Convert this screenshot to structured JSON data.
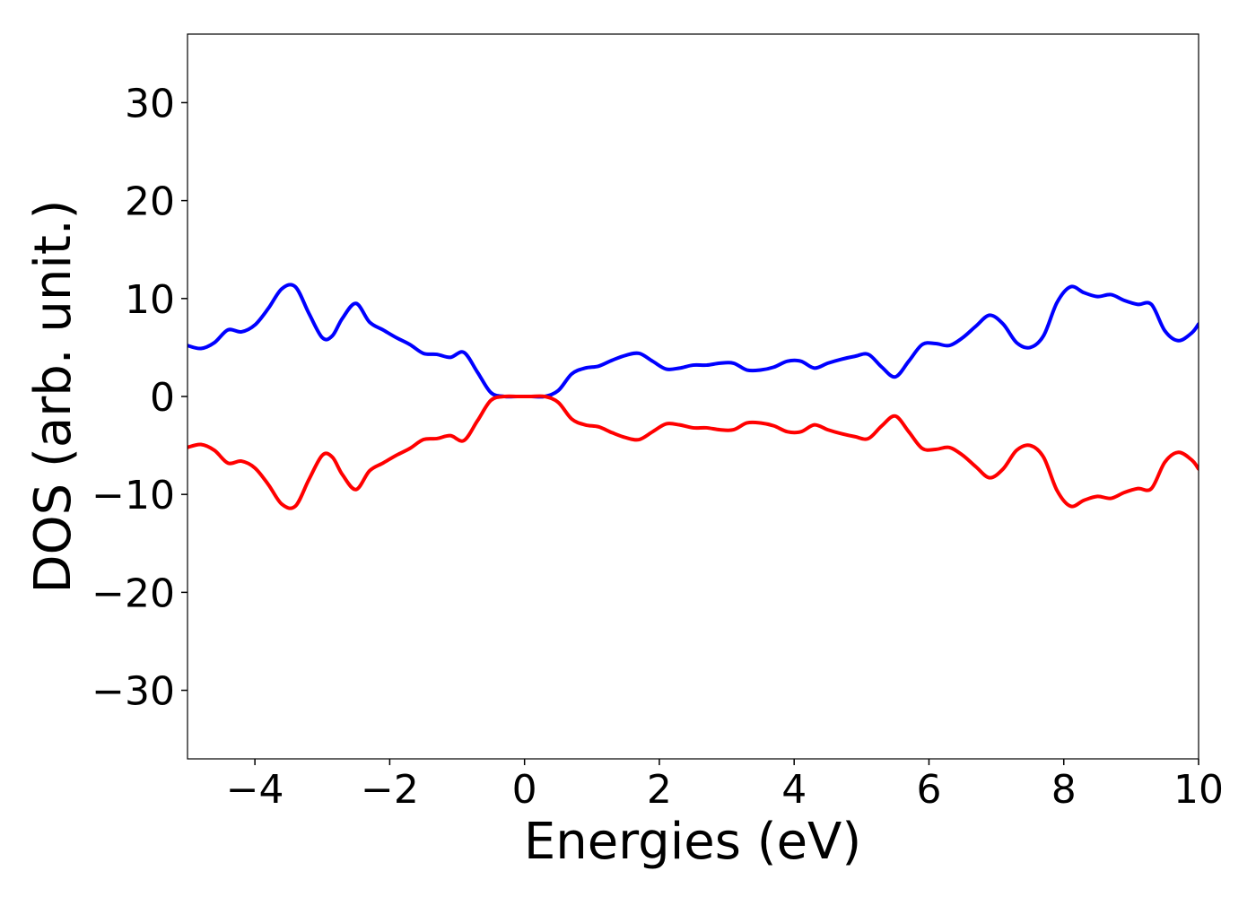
{
  "chart_data": {
    "type": "line",
    "title": "",
    "xlabel": "Energies (eV)",
    "ylabel": "DOS (arb. unit.)",
    "xlim": [
      -5,
      10
    ],
    "ylim": [
      -37,
      37
    ],
    "xticks": [
      -4,
      -2,
      0,
      2,
      4,
      6,
      8,
      10
    ],
    "xtick_labels": [
      "−4",
      "−2",
      "0",
      "2",
      "4",
      "6",
      "8",
      "10"
    ],
    "yticks": [
      30,
      20,
      10,
      0,
      -10,
      -20,
      -30
    ],
    "ytick_labels": [
      "30",
      "20",
      "10",
      "0",
      "−10",
      "−20",
      "−30"
    ],
    "grid": false,
    "legend": null,
    "series": [
      {
        "color": "#0000ff",
        "x": [
          -5.0,
          -4.8,
          -4.6,
          -4.4,
          -4.2,
          -4.0,
          -3.8,
          -3.6,
          -3.4,
          -3.2,
          -3.0,
          -2.85,
          -2.7,
          -2.5,
          -2.3,
          -2.1,
          -1.9,
          -1.7,
          -1.5,
          -1.3,
          -1.1,
          -0.9,
          -0.7,
          -0.5,
          -0.3,
          -0.1,
          0.1,
          0.3,
          0.5,
          0.7,
          0.9,
          1.1,
          1.3,
          1.5,
          1.7,
          1.9,
          2.1,
          2.3,
          2.5,
          2.7,
          2.9,
          3.1,
          3.3,
          3.5,
          3.7,
          3.9,
          4.1,
          4.3,
          4.5,
          4.7,
          4.9,
          5.1,
          5.3,
          5.5,
          5.7,
          5.9,
          6.1,
          6.3,
          6.5,
          6.7,
          6.9,
          7.1,
          7.3,
          7.5,
          7.7,
          7.9,
          8.1,
          8.3,
          8.5,
          8.7,
          8.9,
          9.1,
          9.3,
          9.5,
          9.7,
          9.9,
          10.0
        ],
        "y": [
          5.2,
          4.9,
          5.5,
          6.8,
          6.6,
          7.3,
          9.0,
          11.0,
          11.2,
          8.5,
          6.0,
          6.2,
          8.0,
          9.5,
          7.6,
          6.8,
          6.0,
          5.3,
          4.4,
          4.3,
          4.0,
          4.5,
          2.5,
          0.4,
          0.0,
          0.0,
          0.0,
          0.0,
          0.6,
          2.3,
          2.9,
          3.1,
          3.7,
          4.2,
          4.4,
          3.6,
          2.8,
          2.9,
          3.2,
          3.2,
          3.4,
          3.4,
          2.7,
          2.7,
          3.0,
          3.6,
          3.6,
          2.9,
          3.4,
          3.8,
          4.1,
          4.3,
          3.0,
          2.0,
          3.6,
          5.3,
          5.4,
          5.2,
          6.0,
          7.2,
          8.3,
          7.4,
          5.5,
          5.0,
          6.2,
          9.6,
          11.2,
          10.6,
          10.2,
          10.4,
          9.8,
          9.4,
          9.4,
          6.7,
          5.7,
          6.5,
          7.4
        ]
      },
      {
        "color": "#ff0000",
        "x": [
          -5.0,
          -4.8,
          -4.6,
          -4.4,
          -4.2,
          -4.0,
          -3.8,
          -3.6,
          -3.4,
          -3.2,
          -3.0,
          -2.85,
          -2.7,
          -2.5,
          -2.3,
          -2.1,
          -1.9,
          -1.7,
          -1.5,
          -1.3,
          -1.1,
          -0.9,
          -0.7,
          -0.5,
          -0.3,
          -0.1,
          0.1,
          0.3,
          0.5,
          0.7,
          0.9,
          1.1,
          1.3,
          1.5,
          1.7,
          1.9,
          2.1,
          2.3,
          2.5,
          2.7,
          2.9,
          3.1,
          3.3,
          3.5,
          3.7,
          3.9,
          4.1,
          4.3,
          4.5,
          4.7,
          4.9,
          5.1,
          5.3,
          5.5,
          5.7,
          5.9,
          6.1,
          6.3,
          6.5,
          6.7,
          6.9,
          7.1,
          7.3,
          7.5,
          7.7,
          7.9,
          8.1,
          8.3,
          8.5,
          8.7,
          8.9,
          9.1,
          9.3,
          9.5,
          9.7,
          9.9,
          10.0
        ],
        "y": [
          -5.2,
          -4.9,
          -5.5,
          -6.8,
          -6.6,
          -7.3,
          -9.0,
          -11.0,
          -11.2,
          -8.5,
          -6.0,
          -6.2,
          -8.0,
          -9.5,
          -7.6,
          -6.8,
          -6.0,
          -5.3,
          -4.4,
          -4.3,
          -4.0,
          -4.5,
          -2.5,
          -0.4,
          0.0,
          0.0,
          0.0,
          0.0,
          -0.6,
          -2.3,
          -2.9,
          -3.1,
          -3.7,
          -4.2,
          -4.4,
          -3.6,
          -2.8,
          -2.9,
          -3.2,
          -3.2,
          -3.4,
          -3.4,
          -2.7,
          -2.7,
          -3.0,
          -3.6,
          -3.6,
          -2.9,
          -3.4,
          -3.8,
          -4.1,
          -4.3,
          -3.0,
          -2.0,
          -3.6,
          -5.3,
          -5.4,
          -5.2,
          -6.0,
          -7.2,
          -8.3,
          -7.4,
          -5.5,
          -5.0,
          -6.2,
          -9.6,
          -11.2,
          -10.6,
          -10.2,
          -10.4,
          -9.8,
          -9.4,
          -9.4,
          -6.7,
          -5.7,
          -6.5,
          -7.4
        ]
      }
    ]
  }
}
